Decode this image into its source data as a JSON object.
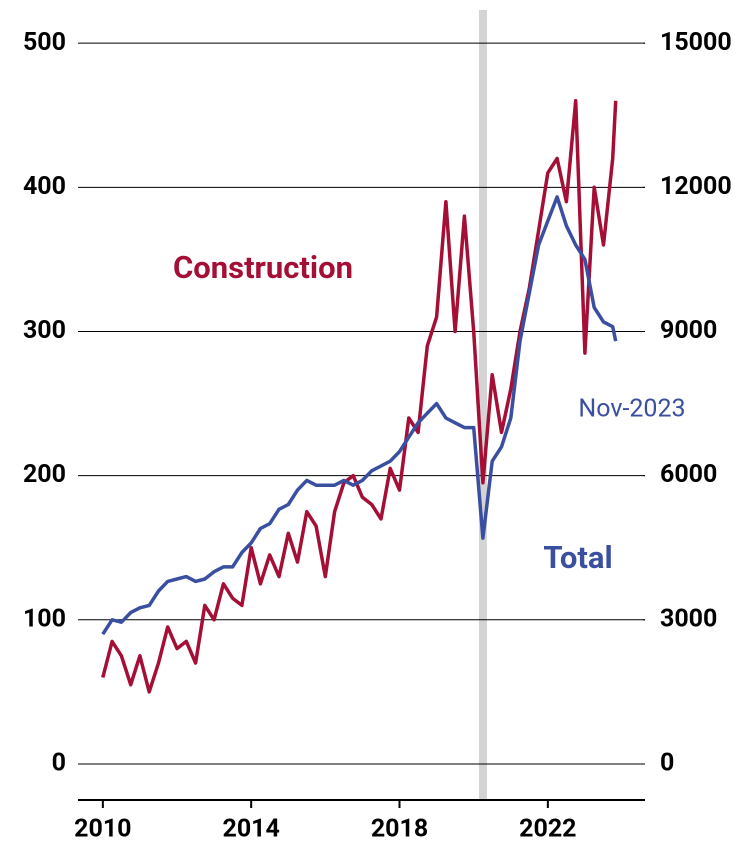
{
  "chart_data": {
    "type": "line",
    "x": [
      2010,
      2010.25,
      2010.5,
      2010.75,
      2011,
      2011.25,
      2011.5,
      2011.75,
      2012,
      2012.25,
      2012.5,
      2012.75,
      2013,
      2013.25,
      2013.5,
      2013.75,
      2014,
      2014.25,
      2014.5,
      2014.75,
      2015,
      2015.25,
      2015.5,
      2015.75,
      2016,
      2016.25,
      2016.5,
      2016.75,
      2017,
      2017.25,
      2017.5,
      2017.75,
      2018,
      2018.25,
      2018.5,
      2018.75,
      2019,
      2019.25,
      2019.5,
      2019.75,
      2020,
      2020.25,
      2020.5,
      2020.75,
      2021,
      2021.25,
      2021.5,
      2021.75,
      2022,
      2022.25,
      2022.5,
      2022.75,
      2023,
      2023.25,
      2023.5,
      2023.75,
      2023.83
    ],
    "series": [
      {
        "name": "Construction",
        "color": "#a50f35",
        "axis": "y",
        "values": [
          60,
          85,
          75,
          55,
          75,
          50,
          70,
          95,
          80,
          85,
          70,
          110,
          100,
          125,
          115,
          110,
          150,
          125,
          145,
          130,
          160,
          140,
          175,
          165,
          130,
          175,
          195,
          200,
          185,
          180,
          170,
          205,
          190,
          240,
          230,
          290,
          310,
          390,
          300,
          380,
          300,
          195,
          270,
          230,
          260,
          300,
          330,
          370,
          410,
          420,
          390,
          460,
          285,
          400,
          360,
          420,
          460
        ]
      },
      {
        "name": "Total",
        "color": "#3a4fa0",
        "axis": "y2",
        "values": [
          2700,
          3000,
          2950,
          3150,
          3250,
          3300,
          3600,
          3800,
          3850,
          3900,
          3800,
          3850,
          4000,
          4100,
          4100,
          4400,
          4600,
          4900,
          5000,
          5300,
          5400,
          5700,
          5900,
          5800,
          5800,
          5800,
          5900,
          5800,
          5900,
          6100,
          6200,
          6300,
          6500,
          6800,
          7100,
          7300,
          7500,
          7200,
          7100,
          7000,
          7000,
          4700,
          6300,
          6600,
          7200,
          8800,
          9800,
          10800,
          11300,
          11800,
          11200,
          10800,
          10500,
          9500,
          9200,
          9100,
          8800
        ]
      }
    ],
    "annotation": "Nov-2023",
    "highlight_x": 2020.25,
    "xlim": [
      2009.33,
      2024.62
    ],
    "xticks": [
      2010,
      2014,
      2018,
      2022
    ],
    "ylim": [
      -25,
      523
    ],
    "yticks": [
      0,
      100,
      200,
      300,
      400,
      500
    ],
    "y2lim": [
      -750,
      15690
    ],
    "y2ticks": [
      0,
      3000,
      6000,
      9000,
      12000,
      15000
    ],
    "grid": true
  }
}
